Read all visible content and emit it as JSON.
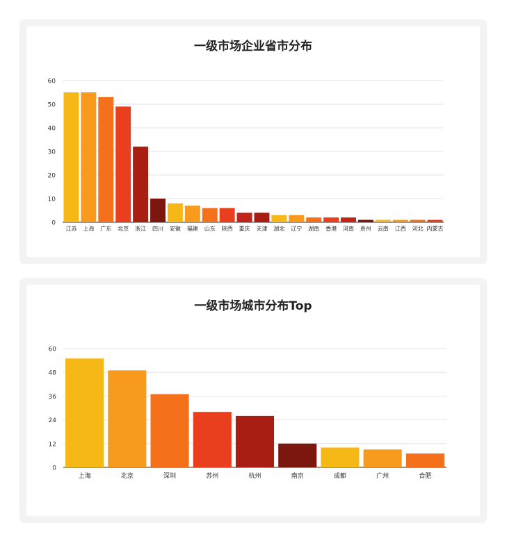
{
  "chart_data": [
    {
      "type": "bar",
      "title": "一级市场企业省市分布",
      "xlabel": "",
      "ylabel": "",
      "ylim": [
        0,
        60
      ],
      "yticks": [
        0,
        10,
        20,
        30,
        40,
        50,
        60
      ],
      "grid": true,
      "categories": [
        "江苏",
        "上海",
        "广东",
        "北京",
        "浙江",
        "四川",
        "安徽",
        "福建",
        "山东",
        "陕西",
        "重庆",
        "天津",
        "湖北",
        "辽宁",
        "湖南",
        "香港",
        "河南",
        "贵州",
        "云南",
        "江西",
        "河北",
        "内蒙古"
      ],
      "values": [
        55,
        55,
        53,
        49,
        32,
        10,
        8,
        7,
        6,
        6,
        4,
        4,
        3,
        3,
        2,
        2,
        2,
        1,
        1,
        1,
        1,
        1
      ],
      "colors": [
        "#f5b817",
        "#f89a1c",
        "#f5701a",
        "#ea3f1f",
        "#a81e13",
        "#7c170f",
        "#f5b817",
        "#f89a1c",
        "#f5701a",
        "#ea3f1f",
        "#c1241a",
        "#a81e13",
        "#f5b817",
        "#f89a1c",
        "#f5701a",
        "#ea3f1f",
        "#c1241a",
        "#7c170f",
        "#f5b817",
        "#f89a1c",
        "#f5701a",
        "#ea3f1f"
      ]
    },
    {
      "type": "bar",
      "title": "一级市场城市分布Top",
      "xlabel": "",
      "ylabel": "",
      "ylim": [
        0,
        60
      ],
      "yticks": [
        0,
        12,
        24,
        36,
        48,
        60
      ],
      "grid": true,
      "categories": [
        "上海",
        "北京",
        "深圳",
        "苏州",
        "杭州",
        "南京",
        "成都",
        "广州",
        "合肥"
      ],
      "values": [
        55,
        49,
        37,
        28,
        26,
        12,
        10,
        9,
        7
      ],
      "colors": [
        "#f5b817",
        "#f89a1c",
        "#f5701a",
        "#ea3f1f",
        "#a81e13",
        "#7c170f",
        "#f5b817",
        "#f89a1c",
        "#f5701a"
      ]
    }
  ]
}
